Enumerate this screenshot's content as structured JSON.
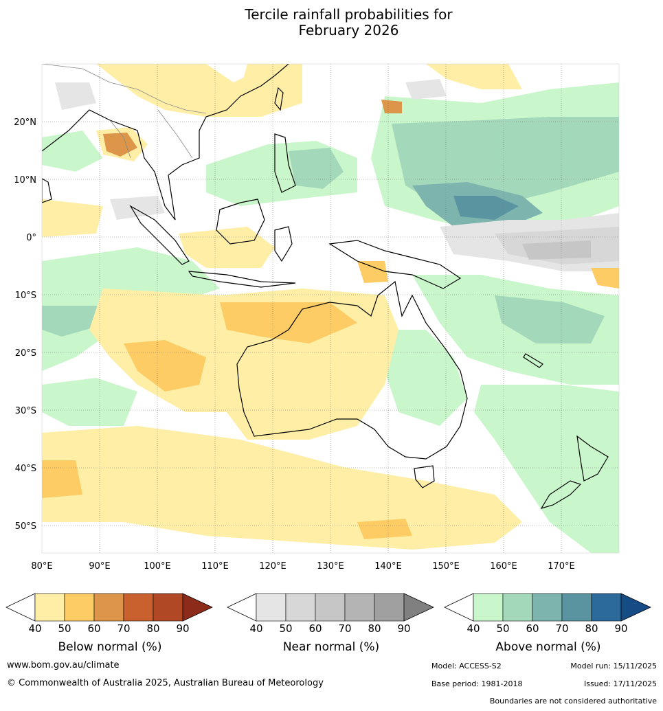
{
  "title": {
    "line1": "Tercile rainfall probabilities for",
    "line2": "February 2026"
  },
  "map": {
    "lon_labels": [
      "80°E",
      "90°E",
      "100°E",
      "110°E",
      "120°E",
      "130°E",
      "140°E",
      "150°E",
      "160°E",
      "170°E"
    ],
    "lat_labels": [
      "20°N",
      "10°N",
      "0°",
      "10°S",
      "20°S",
      "30°S",
      "40°S",
      "50°S"
    ],
    "colors": {
      "below": [
        "#ffeea6",
        "#fdcc64",
        "#dd9549",
        "#c9612f",
        "#b04725",
        "#8c2b1a"
      ],
      "near": [
        "#e5e5e5",
        "#d7d7d7",
        "#c6c6c6",
        "#b4b4b4",
        "#a0a0a0",
        "#808080"
      ],
      "above": [
        "#c9f7cb",
        "#a4d8bb",
        "#7eb4ae",
        "#5a94a0",
        "#2d6a9c",
        "#164c86"
      ]
    }
  },
  "colorbars": [
    {
      "id": "below",
      "label": "Below normal (%)",
      "ticks": [
        "40",
        "50",
        "60",
        "70",
        "80",
        "90"
      ]
    },
    {
      "id": "near",
      "label": "Near normal (%)",
      "ticks": [
        "40",
        "50",
        "60",
        "70",
        "80",
        "90"
      ]
    },
    {
      "id": "above",
      "label": "Above normal (%)",
      "ticks": [
        "40",
        "50",
        "60",
        "70",
        "80",
        "90"
      ]
    }
  ],
  "footer": {
    "website": "www.bom.gov.au/climate",
    "copyright": "© Commonwealth of Australia 2025, Australian Bureau of Meteorology",
    "model": "Model: ACCESS-S2",
    "model_run": "Model run: 15/11/2025",
    "base_period": "Base period: 1981-2018",
    "issued": "Issued: 17/11/2025",
    "boundaries": "Boundaries are not considered authoritative"
  }
}
